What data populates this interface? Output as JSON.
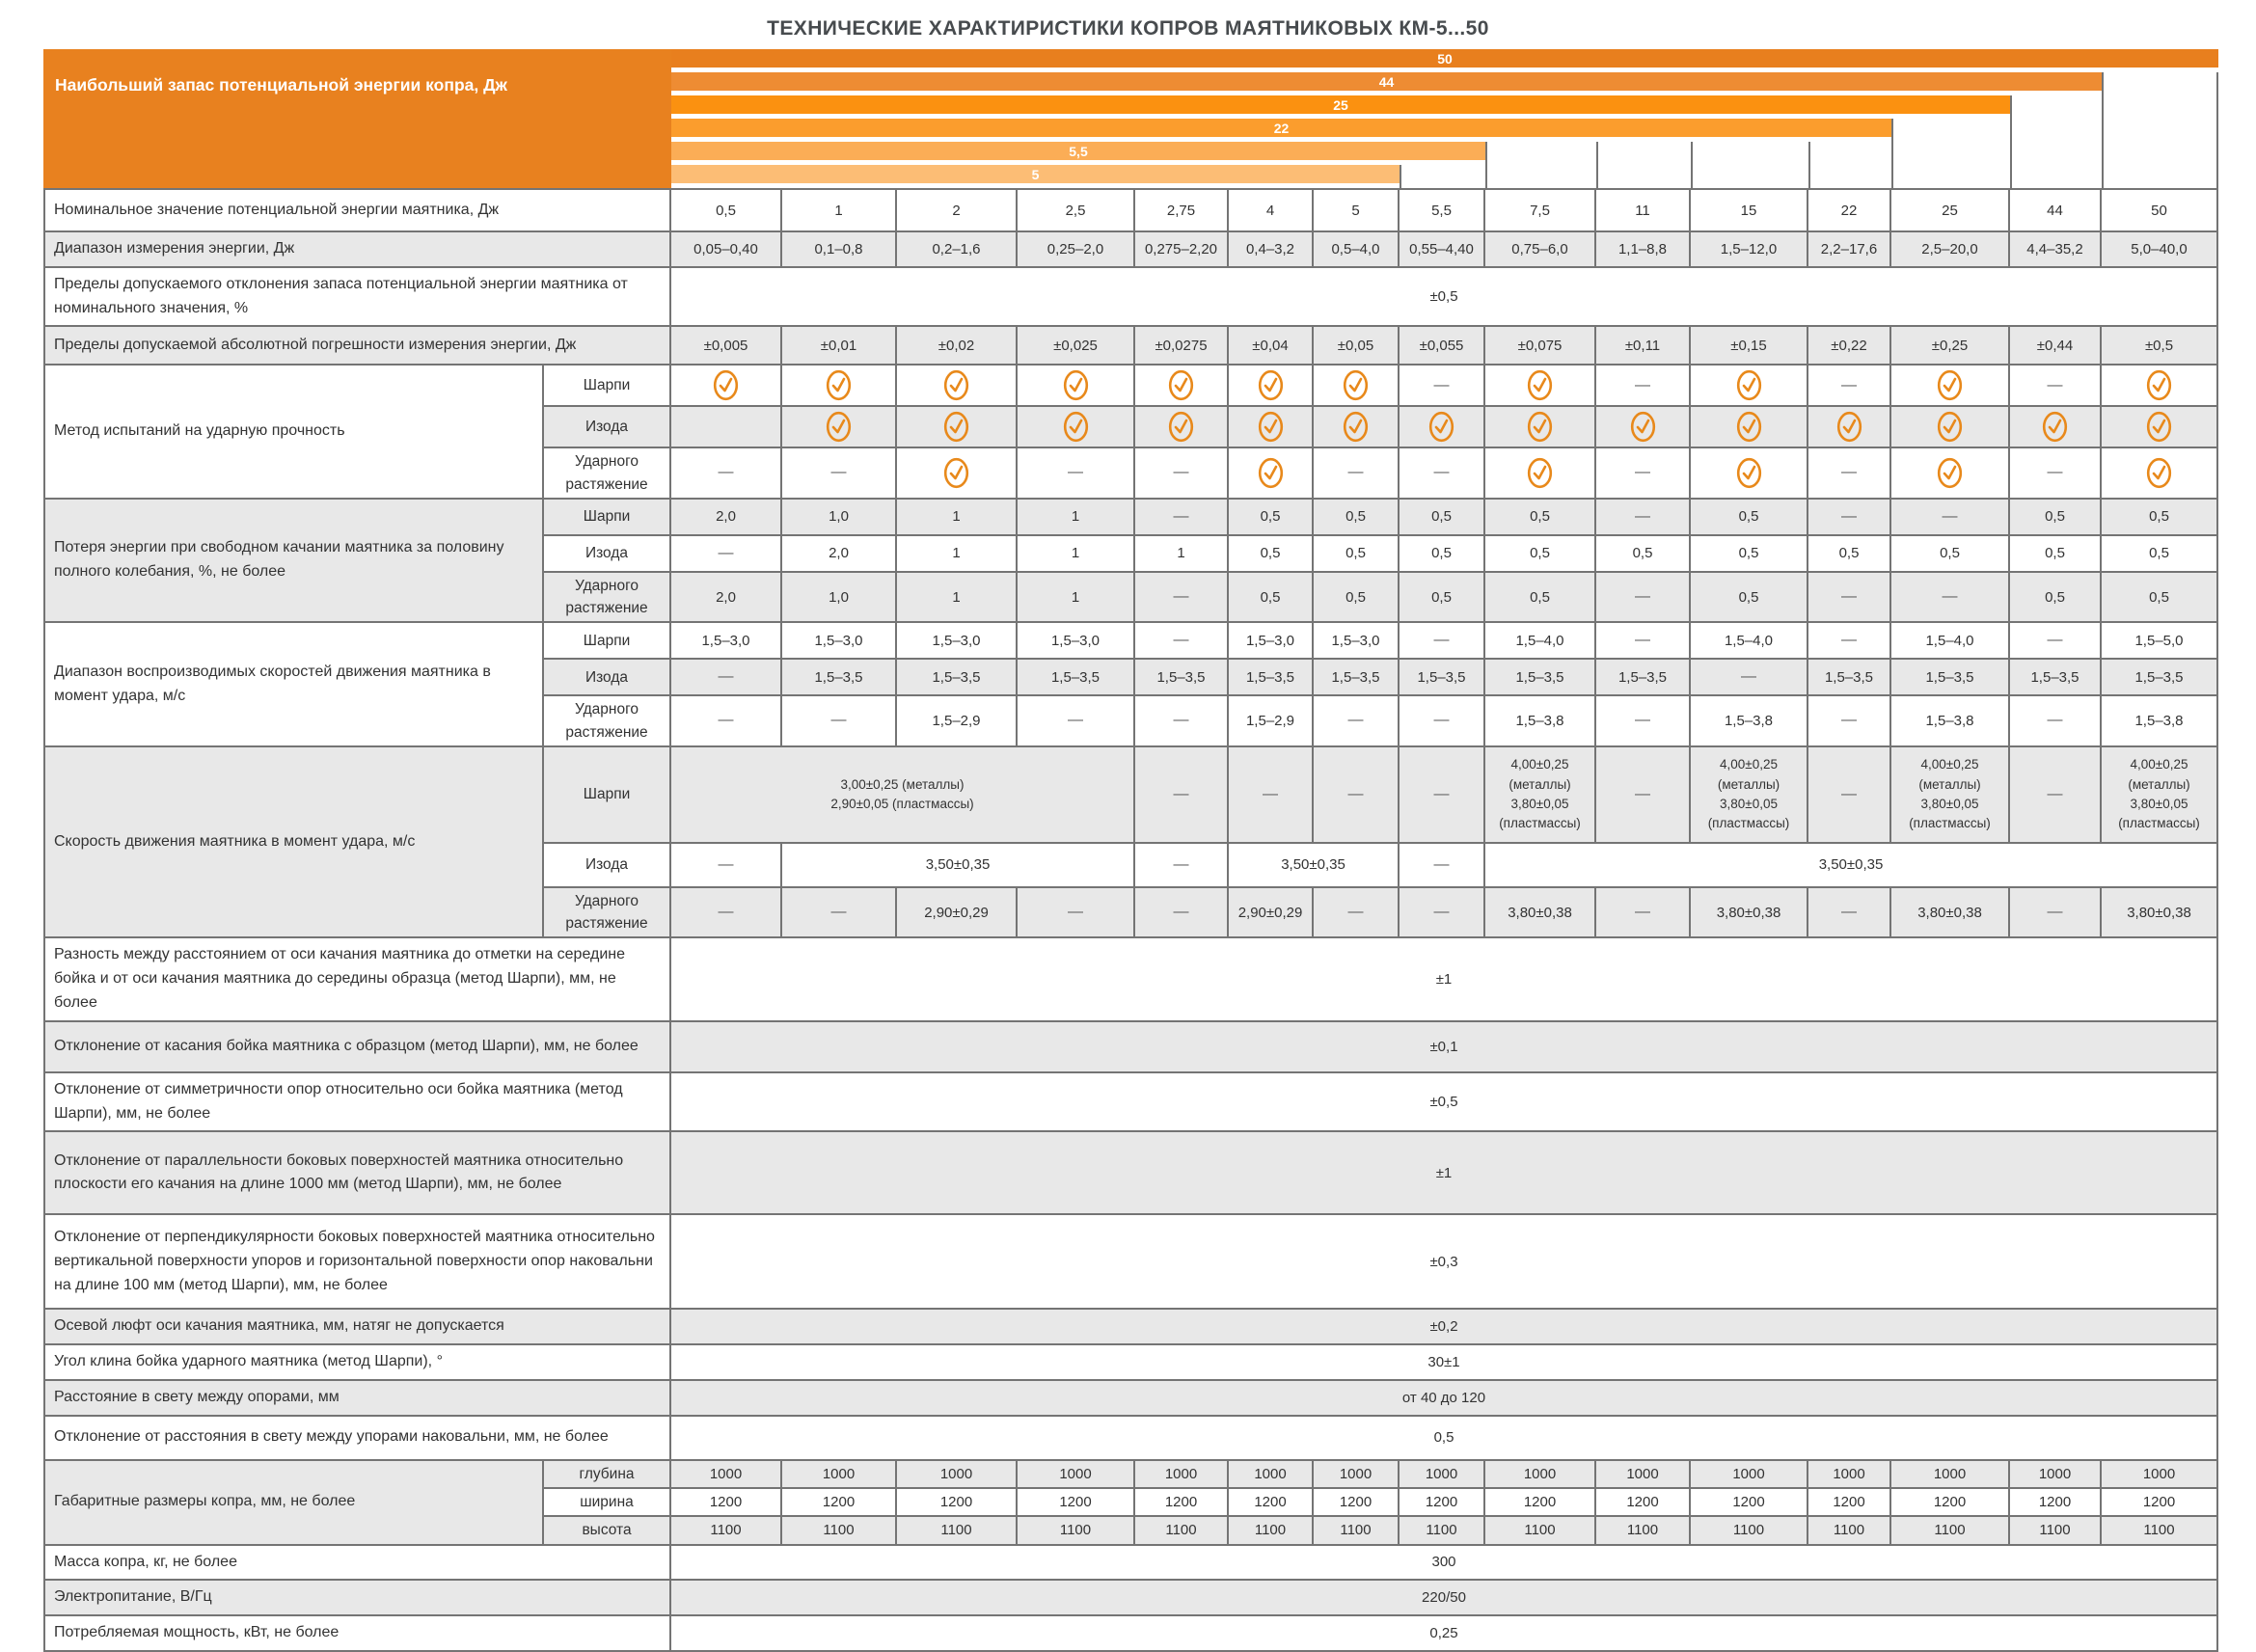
{
  "title": "ТЕХНИЧЕСКИЕ ХАРАКТИРИСТИКИ КОПРОВ МАЯТНИКОВЫХ КМ-5...50",
  "colors": {
    "accent_orange": "#E8811F",
    "check_icon": "#E8891B",
    "grid_line": "#747474",
    "row_stripe": "#e8e8e8"
  },
  "header": {
    "label": "Наибольший запас потенциальной энергии копра, Дж",
    "bars": [
      {
        "value": "50",
        "end_col": 15,
        "color": "#E87F1E"
      },
      {
        "value": "44",
        "end_col": 14,
        "color": "#EE8C33"
      },
      {
        "value": "25",
        "end_col": 13,
        "color": "#FB9110"
      },
      {
        "value": "22",
        "end_col": 12,
        "color": "#FB9D2D"
      },
      {
        "value": "5,5",
        "end_col": 8,
        "color": "#FBAD56"
      },
      {
        "value": "5",
        "end_col": 7,
        "color": "#FCBD75"
      }
    ]
  },
  "chart_data": {
    "type": "bar",
    "title": "Наибольший запас потенциальной энергии копра, Дж",
    "categories": [
      "50",
      "44",
      "25",
      "22",
      "5,5",
      "5"
    ],
    "values": [
      50,
      44,
      25,
      22,
      5.5,
      5
    ],
    "orientation": "horizontal",
    "xlim": [
      0,
      50
    ]
  },
  "columns": [
    "0,5",
    "1",
    "2",
    "2,5",
    "2,75",
    "4",
    "5",
    "5,5",
    "7,5",
    "11",
    "15",
    "22",
    "25",
    "44",
    "50"
  ],
  "rows": [
    {
      "name": "nominal-energy",
      "label": "Номинальное значение потенциальной энергии маятника, Дж",
      "h": 44,
      "cells": [
        {
          "v": "0,5"
        },
        {
          "v": "1"
        },
        {
          "v": "2"
        },
        {
          "v": "2,5"
        },
        {
          "v": "2,75"
        },
        {
          "v": "4"
        },
        {
          "v": "5"
        },
        {
          "v": "5,5"
        },
        {
          "v": "7,5"
        },
        {
          "v": "11"
        },
        {
          "v": "15"
        },
        {
          "v": "22"
        },
        {
          "v": "25"
        },
        {
          "v": "44"
        },
        {
          "v": "50"
        }
      ]
    },
    {
      "name": "energy-range",
      "label": "Диапазон измерения энергии, Дж",
      "h": 32,
      "cells": [
        {
          "v": "0,05–0,40"
        },
        {
          "v": "0,1–0,8"
        },
        {
          "v": "0,2–1,6"
        },
        {
          "v": "0,25–2,0"
        },
        {
          "v": "0,275–2,20"
        },
        {
          "v": "0,4–3,2"
        },
        {
          "v": "0,5–4,0"
        },
        {
          "v": "0,55–4,40"
        },
        {
          "v": "0,75–6,0"
        },
        {
          "v": "1,1–8,8"
        },
        {
          "v": "1,5–12,0"
        },
        {
          "v": "2,2–17,6"
        },
        {
          "v": "2,5–20,0"
        },
        {
          "v": "4,4–35,2"
        },
        {
          "v": "5,0–40,0"
        }
      ]
    },
    {
      "name": "deviation-limits",
      "label": "Пределы допускаемого отклонения запаса потенциальной энергии маятника от номинального значения, %",
      "h": 56,
      "cells": [
        {
          "v": "±0,5",
          "span": 15
        }
      ]
    },
    {
      "name": "abs-error-limits",
      "label": "Пределы допускаемой абсолютной погрешности измерения энергии, Дж",
      "h": 40,
      "cells": [
        {
          "v": "±0,005"
        },
        {
          "v": "±0,01"
        },
        {
          "v": "±0,02"
        },
        {
          "v": "±0,025"
        },
        {
          "v": "±0,0275"
        },
        {
          "v": "±0,04"
        },
        {
          "v": "±0,05"
        },
        {
          "v": "±0,055"
        },
        {
          "v": "±0,075"
        },
        {
          "v": "±0,11"
        },
        {
          "v": "±0,15"
        },
        {
          "v": "±0,22"
        },
        {
          "v": "±0,25"
        },
        {
          "v": "±0,44"
        },
        {
          "v": "±0,5"
        }
      ]
    },
    {
      "name": "impact-method-sharpy",
      "label": "Метод испытаний на ударную прочность",
      "labelspan": 3,
      "sublabel": "Шарпи",
      "h": 42,
      "cells": [
        {
          "i": 1
        },
        {
          "i": 1
        },
        {
          "i": 1
        },
        {
          "i": 1
        },
        {
          "i": 1
        },
        {
          "i": 1
        },
        {
          "i": 1
        },
        {
          "v": "—"
        },
        {
          "i": 1
        },
        {
          "v": "—"
        },
        {
          "i": 1
        },
        {
          "v": "—"
        },
        {
          "i": 1
        },
        {
          "v": "—"
        },
        {
          "i": 1
        }
      ]
    },
    {
      "name": "impact-method-izod",
      "sublabel": "Изода",
      "h": 42,
      "cells": [
        {
          "v": ""
        },
        {
          "i": 1
        },
        {
          "i": 1
        },
        {
          "i": 1
        },
        {
          "i": 1
        },
        {
          "i": 1
        },
        {
          "i": 1
        },
        {
          "i": 1
        },
        {
          "i": 1
        },
        {
          "i": 1
        },
        {
          "i": 1
        },
        {
          "i": 1
        },
        {
          "i": 1
        },
        {
          "i": 1
        },
        {
          "i": 1
        }
      ]
    },
    {
      "name": "impact-method-tension",
      "sublabel": "Ударного\nрастяжение",
      "h": 48,
      "cells": [
        {
          "v": "—"
        },
        {
          "v": "—"
        },
        {
          "i": 1
        },
        {
          "v": "—"
        },
        {
          "v": "—"
        },
        {
          "i": 1
        },
        {
          "v": "—"
        },
        {
          "v": "—"
        },
        {
          "i": 1
        },
        {
          "v": "—"
        },
        {
          "i": 1
        },
        {
          "v": "—"
        },
        {
          "i": 1
        },
        {
          "v": "—"
        },
        {
          "i": 1
        }
      ]
    },
    {
      "name": "energy-loss-sharpy",
      "label": "Потеря энергии при свободном качании маятника за половину полного колебания, %, не более",
      "labelspan": 3,
      "sublabel": "Шарпи",
      "h": 38,
      "cells": [
        {
          "v": "2,0"
        },
        {
          "v": "1,0"
        },
        {
          "v": "1"
        },
        {
          "v": "1"
        },
        {
          "v": "—"
        },
        {
          "v": "0,5"
        },
        {
          "v": "0,5"
        },
        {
          "v": "0,5"
        },
        {
          "v": "0,5"
        },
        {
          "v": "—"
        },
        {
          "v": "0,5"
        },
        {
          "v": "—"
        },
        {
          "v": "—"
        },
        {
          "v": "0,5"
        },
        {
          "v": "0,5"
        }
      ]
    },
    {
      "name": "energy-loss-izod",
      "sublabel": "Изода",
      "h": 38,
      "cells": [
        {
          "v": "—"
        },
        {
          "v": "2,0"
        },
        {
          "v": "1"
        },
        {
          "v": "1"
        },
        {
          "v": "1"
        },
        {
          "v": "0,5"
        },
        {
          "v": "0,5"
        },
        {
          "v": "0,5"
        },
        {
          "v": "0,5"
        },
        {
          "v": "0,5"
        },
        {
          "v": "0,5"
        },
        {
          "v": "0,5"
        },
        {
          "v": "0,5"
        },
        {
          "v": "0,5"
        },
        {
          "v": "0,5"
        }
      ]
    },
    {
      "name": "energy-loss-tension",
      "sublabel": "Ударного\nрастяжение",
      "h": 48,
      "cells": [
        {
          "v": "2,0"
        },
        {
          "v": "1,0"
        },
        {
          "v": "1"
        },
        {
          "v": "1"
        },
        {
          "v": "—"
        },
        {
          "v": "0,5"
        },
        {
          "v": "0,5"
        },
        {
          "v": "0,5"
        },
        {
          "v": "0,5"
        },
        {
          "v": "—"
        },
        {
          "v": "0,5"
        },
        {
          "v": "—"
        },
        {
          "v": "—"
        },
        {
          "v": "0,5"
        },
        {
          "v": "0,5"
        }
      ]
    },
    {
      "name": "speed-range-sharpy",
      "label": "Диапазон воспроизводимых скоростей движения маятника в момент удара, м/с",
      "labelspan": 3,
      "sublabel": "Шарпи",
      "h": 38,
      "cells": [
        {
          "v": "1,5–3,0"
        },
        {
          "v": "1,5–3,0"
        },
        {
          "v": "1,5–3,0"
        },
        {
          "v": "1,5–3,0"
        },
        {
          "v": "—"
        },
        {
          "v": "1,5–3,0"
        },
        {
          "v": "1,5–3,0"
        },
        {
          "v": "—"
        },
        {
          "v": "1,5–4,0"
        },
        {
          "v": "—"
        },
        {
          "v": "1,5–4,0"
        },
        {
          "v": "—"
        },
        {
          "v": "1,5–4,0"
        },
        {
          "v": "—"
        },
        {
          "v": "1,5–5,0"
        }
      ]
    },
    {
      "name": "speed-range-izod",
      "sublabel": "Изода",
      "h": 38,
      "cells": [
        {
          "v": "—"
        },
        {
          "v": "1,5–3,5"
        },
        {
          "v": "1,5–3,5"
        },
        {
          "v": "1,5–3,5"
        },
        {
          "v": "1,5–3,5"
        },
        {
          "v": "1,5–3,5"
        },
        {
          "v": "1,5–3,5"
        },
        {
          "v": "1,5–3,5"
        },
        {
          "v": "1,5–3,5"
        },
        {
          "v": "1,5–3,5"
        },
        {
          "v": "—"
        },
        {
          "v": "1,5–3,5"
        },
        {
          "v": "1,5–3,5"
        },
        {
          "v": "1,5–3,5"
        },
        {
          "v": "1,5–3,5"
        }
      ]
    },
    {
      "name": "speed-range-tension",
      "sublabel": "Ударного\nрастяжение",
      "h": 48,
      "cells": [
        {
          "v": "—"
        },
        {
          "v": "—"
        },
        {
          "v": "1,5–2,9"
        },
        {
          "v": "—"
        },
        {
          "v": "—"
        },
        {
          "v": "1,5–2,9"
        },
        {
          "v": "—"
        },
        {
          "v": "—"
        },
        {
          "v": "1,5–3,8"
        },
        {
          "v": "—"
        },
        {
          "v": "1,5–3,8"
        },
        {
          "v": "—"
        },
        {
          "v": "1,5–3,8"
        },
        {
          "v": "—"
        },
        {
          "v": "1,5–3,8"
        }
      ]
    },
    {
      "name": "impact-speed-sharpy",
      "label": "Скорость движения маятника в момент удара, м/с",
      "labelspan": 3,
      "sublabel": "Шарпи",
      "h": 100,
      "cells": [
        {
          "v": "3,00±0,25 (металлы)\n2,90±0,05 (пластмассы)",
          "span": 4
        },
        {
          "v": "—"
        },
        {
          "v": "—"
        },
        {
          "v": "—"
        },
        {
          "v": "—"
        },
        {
          "v": "4,00±0,25\n(металлы)\n3,80±0,05\n(пластмассы)"
        },
        {
          "v": "—"
        },
        {
          "v": "4,00±0,25\n(металлы)\n3,80±0,05\n(пластмассы)"
        },
        {
          "v": "—"
        },
        {
          "v": "4,00±0,25\n(металлы)\n3,80±0,05\n(пластмассы)"
        },
        {
          "v": "—"
        },
        {
          "v": "4,00±0,25\n(металлы)\n3,80±0,05\n(пластмассы)"
        }
      ]
    },
    {
      "name": "impact-speed-izod",
      "sublabel": "Изода",
      "h": 46,
      "cells": [
        {
          "v": "—"
        },
        {
          "v": "3,50±0,35",
          "span": 3
        },
        {
          "v": "—"
        },
        {
          "v": "3,50±0,35",
          "span": 2
        },
        {
          "v": "—"
        },
        {
          "v": "3,50±0,35",
          "span": 7
        }
      ]
    },
    {
      "name": "impact-speed-tension",
      "sublabel": "Ударного\nрастяжение",
      "h": 50,
      "cells": [
        {
          "v": "—"
        },
        {
          "v": "—"
        },
        {
          "v": "2,90±0,29"
        },
        {
          "v": "—"
        },
        {
          "v": "—"
        },
        {
          "v": "2,90±0,29"
        },
        {
          "v": "—"
        },
        {
          "v": "—"
        },
        {
          "v": "3,80±0,38"
        },
        {
          "v": "—"
        },
        {
          "v": "3,80±0,38"
        },
        {
          "v": "—"
        },
        {
          "v": "3,80±0,38"
        },
        {
          "v": "—"
        },
        {
          "v": "3,80±0,38"
        }
      ]
    },
    {
      "name": "axis-mark-difference",
      "label": "Разность между расстоянием от оси качания маятника до отметки на середине бойка и от оси качания маятника до середины образца (метод Шарпи), мм, не более",
      "h": 86,
      "cells": [
        {
          "v": "±1",
          "span": 15
        }
      ]
    },
    {
      "name": "striker-contact-deviation",
      "label": "Отклонение от касания бойка маятника с образцом (метод Шарпи), мм, не более",
      "h": 53,
      "cells": [
        {
          "v": "±0,1",
          "span": 15
        }
      ]
    },
    {
      "name": "support-symmetry-deviation",
      "label": "Отклонение от симметричности опор относительно оси бойка маятника (метод Шарпи), мм, не более",
      "h": 54,
      "cells": [
        {
          "v": "±0,5",
          "span": 15
        }
      ]
    },
    {
      "name": "parallelism-deviation",
      "label": "Отклонение от параллельности боковых поверхностей маятника относительно плоскости его качания на длине 1000 мм (метод Шарпи), мм, не более",
      "h": 86,
      "cells": [
        {
          "v": "±1",
          "span": 15
        }
      ]
    },
    {
      "name": "perpendicularity-deviation",
      "label": "Отклонение от перпендикулярности боковых поверхностей маятника относительно вертикальной поверхности упоров и горизонтальной поверхности опор наковальни на длине 100 мм (метод Шарпи), мм, не более",
      "h": 98,
      "cells": [
        {
          "v": "±0,3",
          "span": 15
        }
      ]
    },
    {
      "name": "axial-play",
      "label": "Осевой люфт оси качания маятника, мм, натяг не допускается",
      "h": 27,
      "cells": [
        {
          "v": "±0,2",
          "span": 15
        }
      ]
    },
    {
      "name": "wedge-angle",
      "label": "Угол клина бойка ударного маятника (метод Шарпи), °",
      "h": 30,
      "cells": [
        {
          "v": "30±1",
          "span": 15
        }
      ]
    },
    {
      "name": "support-clearance",
      "label": "Расстояние в свету между опорами, мм",
      "h": 21,
      "cells": [
        {
          "v": "от 40 до 120",
          "span": 15
        }
      ]
    },
    {
      "name": "clearance-deviation",
      "label": "Отклонение от расстояния в свету между упорами наковальни, мм, не более",
      "h": 46,
      "cells": [
        {
          "v": "0,5",
          "span": 15
        }
      ]
    },
    {
      "name": "dimensions-depth",
      "label": "Габаритные размеры копра, мм, не более",
      "labelspan": 3,
      "sublabel": "глубина",
      "h": 23,
      "cells": [
        {
          "v": "1000"
        },
        {
          "v": "1000"
        },
        {
          "v": "1000"
        },
        {
          "v": "1000"
        },
        {
          "v": "1000"
        },
        {
          "v": "1000"
        },
        {
          "v": "1000"
        },
        {
          "v": "1000"
        },
        {
          "v": "1000"
        },
        {
          "v": "1000"
        },
        {
          "v": "1000"
        },
        {
          "v": "1000"
        },
        {
          "v": "1000"
        },
        {
          "v": "1000"
        },
        {
          "v": "1000"
        }
      ]
    },
    {
      "name": "dimensions-width",
      "sublabel": "ширина",
      "h": 23,
      "cells": [
        {
          "v": "1200"
        },
        {
          "v": "1200"
        },
        {
          "v": "1200"
        },
        {
          "v": "1200"
        },
        {
          "v": "1200"
        },
        {
          "v": "1200"
        },
        {
          "v": "1200"
        },
        {
          "v": "1200"
        },
        {
          "v": "1200"
        },
        {
          "v": "1200"
        },
        {
          "v": "1200"
        },
        {
          "v": "1200"
        },
        {
          "v": "1200"
        },
        {
          "v": "1200"
        },
        {
          "v": "1200"
        }
      ]
    },
    {
      "name": "dimensions-height",
      "sublabel": "высота",
      "h": 23,
      "cells": [
        {
          "v": "1100"
        },
        {
          "v": "1100"
        },
        {
          "v": "1100"
        },
        {
          "v": "1100"
        },
        {
          "v": "1100"
        },
        {
          "v": "1100"
        },
        {
          "v": "1100"
        },
        {
          "v": "1100"
        },
        {
          "v": "1100"
        },
        {
          "v": "1100"
        },
        {
          "v": "1100"
        },
        {
          "v": "1100"
        },
        {
          "v": "1100"
        },
        {
          "v": "1100"
        },
        {
          "v": "1100"
        }
      ]
    },
    {
      "name": "mass",
      "label": "Масса копра, кг, не более",
      "h": 26,
      "cells": [
        {
          "v": "300",
          "span": 15
        }
      ]
    },
    {
      "name": "power-supply",
      "label": "Электропитание, В/Гц",
      "h": 26,
      "cells": [
        {
          "v": "220/50",
          "span": 15
        }
      ]
    },
    {
      "name": "power-consumption",
      "label": "Потребляемая мощность, кВт, не более",
      "h": 26,
      "cells": [
        {
          "v": "0,25",
          "span": 15
        }
      ]
    }
  ]
}
